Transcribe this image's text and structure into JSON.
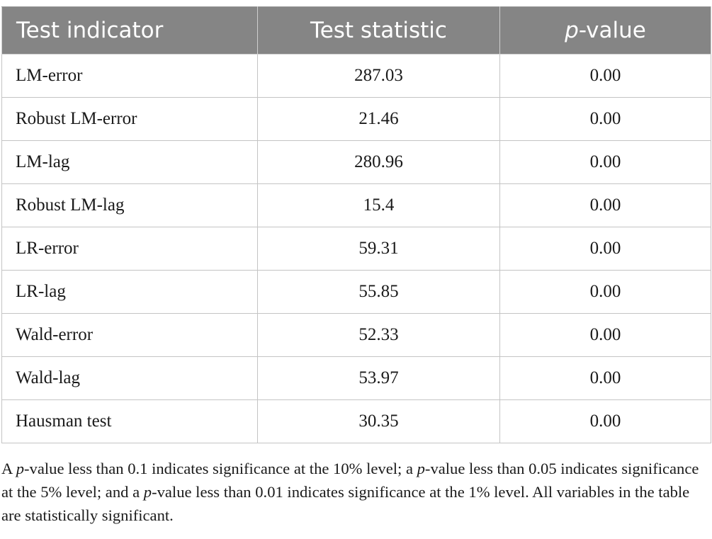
{
  "table": {
    "headers": {
      "indicator": "Test indicator",
      "statistic": "Test statistic",
      "pvalue_italic": "p",
      "pvalue_rest": "-value"
    },
    "rows": [
      {
        "indicator": "LM-error",
        "statistic": "287.03",
        "pvalue": "0.00"
      },
      {
        "indicator": "Robust LM-error",
        "statistic": "21.46",
        "pvalue": "0.00"
      },
      {
        "indicator": "LM-lag",
        "statistic": "280.96",
        "pvalue": "0.00"
      },
      {
        "indicator": "Robust LM-lag",
        "statistic": "15.4",
        "pvalue": "0.00"
      },
      {
        "indicator": "LR-error",
        "statistic": "59.31",
        "pvalue": "0.00"
      },
      {
        "indicator": "LR-lag",
        "statistic": "55.85",
        "pvalue": "0.00"
      },
      {
        "indicator": "Wald-error",
        "statistic": "52.33",
        "pvalue": "0.00"
      },
      {
        "indicator": "Wald-lag",
        "statistic": "53.97",
        "pvalue": "0.00"
      },
      {
        "indicator": "Hausman test",
        "statistic": "30.35",
        "pvalue": "0.00"
      }
    ]
  },
  "note": {
    "seg1": "A ",
    "p1": "p",
    "seg2": "-value less than 0.1 indicates significance at the 10% level; a ",
    "p2": "p",
    "seg3": "-value less than 0.05 indicates significance at the 5% level; and a ",
    "p3": "p",
    "seg4": "-value less than 0.01 indicates significance at the 1% level. All variables in the table are statistically significant."
  }
}
